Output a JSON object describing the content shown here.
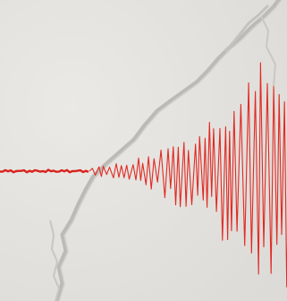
{
  "image": {
    "subject": "seismograph-trace",
    "colors": {
      "background": "#e6e4e0",
      "crack": "#b9b7b2",
      "crack_shadow": "#d3d1cd",
      "trace": "#e12a24",
      "trace_flat": "#d8231d"
    }
  }
}
